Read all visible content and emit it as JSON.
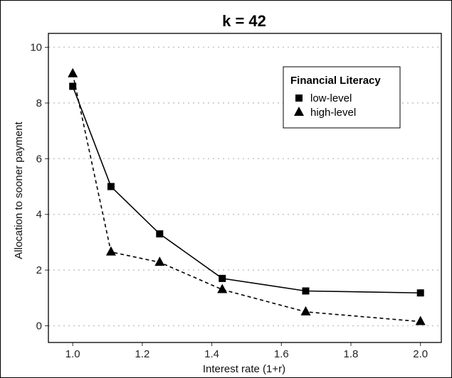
{
  "chart_data": {
    "type": "line",
    "title": "k = 42",
    "xlabel": "Interest rate (1+r)",
    "ylabel": "Allocation to sooner payment",
    "xlim": [
      0.93,
      2.06
    ],
    "ylim": [
      -0.6,
      10.5
    ],
    "xticks": [
      1.0,
      1.2,
      1.4,
      1.6,
      1.8,
      2.0
    ],
    "xtick_labels": [
      "1.0",
      "1.2",
      "1.4",
      "1.6",
      "1.8",
      "2.0"
    ],
    "yticks": [
      0,
      2,
      4,
      6,
      8,
      10
    ],
    "ytick_labels": [
      "0",
      "2",
      "4",
      "6",
      "8",
      "10"
    ],
    "grid": "horizontal dotted",
    "legend": {
      "title": "Financial Literacy",
      "placement": "top-right"
    },
    "series": [
      {
        "name": "low-level",
        "marker": "square",
        "line": "solid",
        "color": "#000000",
        "x": [
          1.0,
          1.11,
          1.25,
          1.43,
          1.67,
          2.0
        ],
        "y": [
          8.6,
          5.0,
          3.3,
          1.7,
          1.25,
          1.18
        ]
      },
      {
        "name": "high-level",
        "marker": "triangle",
        "line": "dashed",
        "color": "#000000",
        "x": [
          1.0,
          1.11,
          1.25,
          1.43,
          1.67,
          2.0
        ],
        "y": [
          9.05,
          2.65,
          2.28,
          1.3,
          0.5,
          0.15
        ]
      }
    ]
  }
}
